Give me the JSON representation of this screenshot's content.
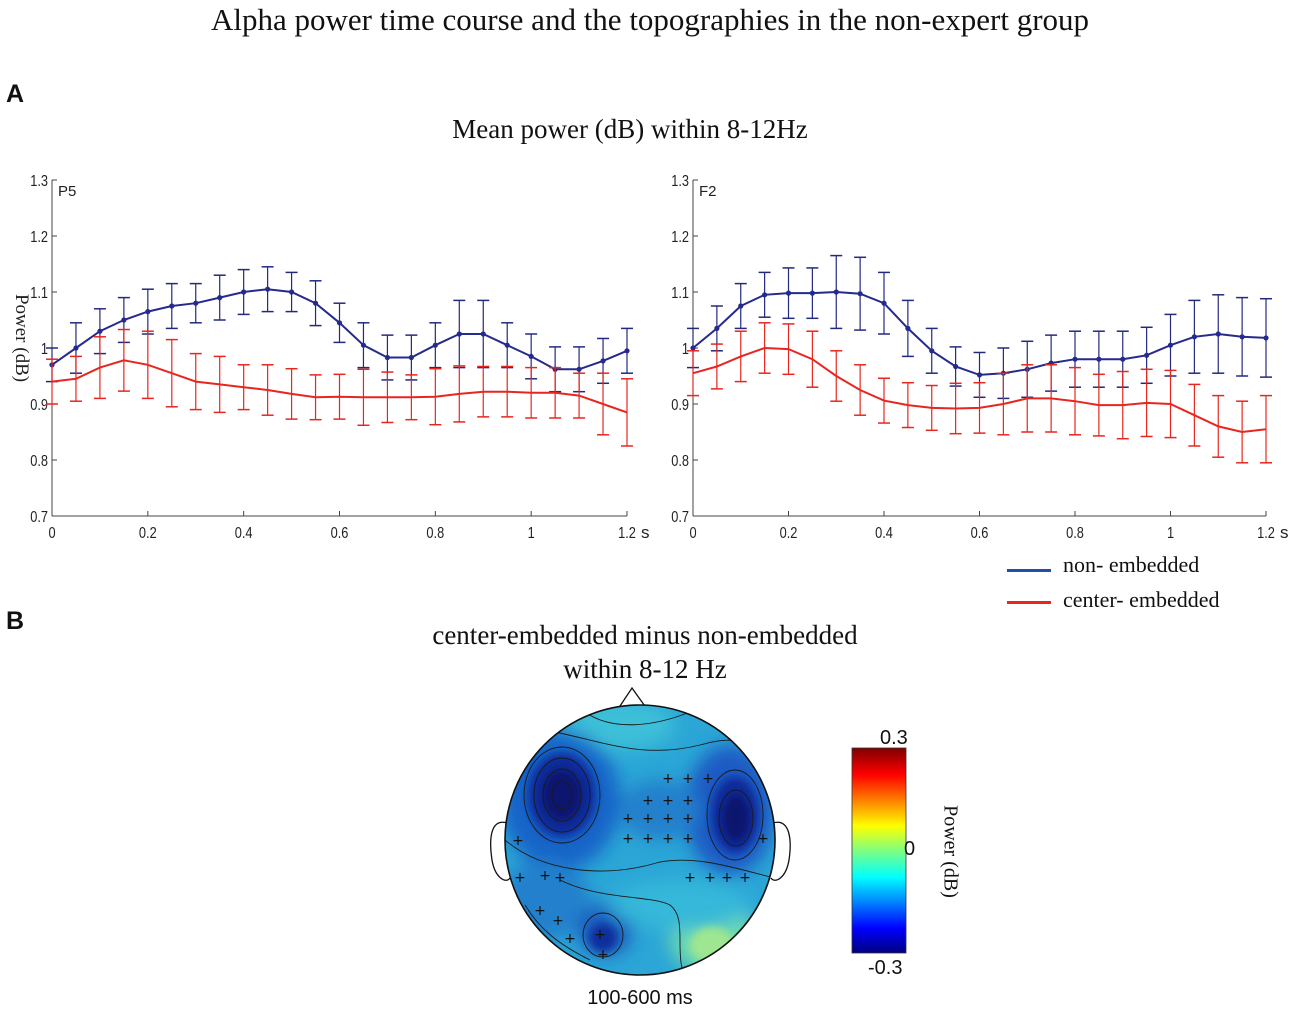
{
  "title": "Alpha power time course and the topographies in the non-expert group",
  "panel_a": {
    "letter": "A",
    "title": "Mean  power (dB) within 8-12Hz"
  },
  "panel_b": {
    "letter": "B",
    "title_line1": "center-embedded  minus  non-embedded",
    "title_line2": "within  8-12 Hz",
    "time_window": "100-600 ms",
    "colorbar": {
      "max_label": "0.3",
      "mid_label": "0",
      "min_label": "-0.3",
      "label": "Power (dB)"
    }
  },
  "legend": [
    {
      "name": "non- embedded",
      "color": "#1f4fa8"
    },
    {
      "name": "center- embedded",
      "color": "#e8261f"
    }
  ],
  "colors": {
    "blue_line": "#252a8c",
    "blue_err": "#232a7e",
    "red_line": "#e8261f"
  },
  "chart_data": [
    {
      "type": "line",
      "electrode": "P5",
      "ylabel": "Power (dB)",
      "x_unit": "s",
      "xlim": [
        0,
        1.2
      ],
      "ylim": [
        0.7,
        1.3
      ],
      "x_ticks": [
        "0",
        "0.2",
        "0.4",
        "0.6",
        "0.8",
        "1",
        "1.2"
      ],
      "y_ticks": [
        "0.7",
        "0.8",
        "0.9",
        "1",
        "1.1",
        "1.2",
        "1.3"
      ],
      "x": [
        0,
        0.05,
        0.1,
        0.15,
        0.2,
        0.25,
        0.3,
        0.35,
        0.4,
        0.45,
        0.5,
        0.55,
        0.6,
        0.65,
        0.7,
        0.75,
        0.8,
        0.85,
        0.9,
        0.95,
        1.0,
        1.05,
        1.1,
        1.15,
        1.2
      ],
      "series": [
        {
          "name": "non- embedded",
          "values": [
            0.97,
            1.0,
            1.03,
            1.05,
            1.065,
            1.075,
            1.08,
            1.09,
            1.1,
            1.105,
            1.1,
            1.08,
            1.045,
            1.005,
            0.983,
            0.983,
            1.005,
            1.025,
            1.025,
            1.005,
            0.985,
            0.962,
            0.962,
            0.977,
            0.995
          ],
          "errors": [
            0.03,
            0.045,
            0.04,
            0.04,
            0.04,
            0.04,
            0.035,
            0.04,
            0.04,
            0.04,
            0.035,
            0.04,
            0.035,
            0.04,
            0.04,
            0.04,
            0.04,
            0.06,
            0.06,
            0.04,
            0.04,
            0.04,
            0.04,
            0.04,
            0.04
          ]
        },
        {
          "name": "center- embedded",
          "values": [
            0.94,
            0.945,
            0.965,
            0.978,
            0.97,
            0.955,
            0.94,
            0.935,
            0.93,
            0.925,
            0.918,
            0.912,
            0.913,
            0.912,
            0.912,
            0.912,
            0.913,
            0.918,
            0.922,
            0.922,
            0.92,
            0.92,
            0.915,
            0.9,
            0.885
          ],
          "errors": [
            0.04,
            0.04,
            0.055,
            0.055,
            0.06,
            0.06,
            0.05,
            0.05,
            0.04,
            0.045,
            0.045,
            0.04,
            0.04,
            0.05,
            0.045,
            0.04,
            0.05,
            0.05,
            0.045,
            0.045,
            0.045,
            0.045,
            0.04,
            0.055,
            0.06
          ]
        }
      ]
    },
    {
      "type": "line",
      "electrode": "F2",
      "ylabel": "",
      "x_unit": "s",
      "xlim": [
        0,
        1.2
      ],
      "ylim": [
        0.7,
        1.3
      ],
      "x_ticks": [
        "0",
        "0.2",
        "0.4",
        "0.6",
        "0.8",
        "1",
        "1.2"
      ],
      "y_ticks": [
        "0.7",
        "0.8",
        "0.9",
        "1",
        "1.1",
        "1.2",
        "1.3"
      ],
      "x": [
        0,
        0.05,
        0.1,
        0.15,
        0.2,
        0.25,
        0.3,
        0.35,
        0.4,
        0.45,
        0.5,
        0.55,
        0.6,
        0.65,
        0.7,
        0.75,
        0.8,
        0.85,
        0.9,
        0.95,
        1.0,
        1.05,
        1.1,
        1.15,
        1.2
      ],
      "series": [
        {
          "name": "non- embedded",
          "values": [
            1.0,
            1.035,
            1.075,
            1.095,
            1.098,
            1.098,
            1.1,
            1.097,
            1.08,
            1.035,
            0.995,
            0.967,
            0.952,
            0.955,
            0.962,
            0.973,
            0.98,
            0.98,
            0.98,
            0.987,
            1.005,
            1.02,
            1.025,
            1.02,
            1.018
          ],
          "errors": [
            0.035,
            0.04,
            0.04,
            0.04,
            0.045,
            0.045,
            0.065,
            0.065,
            0.055,
            0.05,
            0.04,
            0.035,
            0.04,
            0.045,
            0.05,
            0.05,
            0.05,
            0.05,
            0.05,
            0.05,
            0.055,
            0.065,
            0.07,
            0.07,
            0.07
          ]
        },
        {
          "name": "center- embedded",
          "values": [
            0.955,
            0.967,
            0.985,
            1.0,
            0.998,
            0.98,
            0.95,
            0.925,
            0.906,
            0.898,
            0.893,
            0.892,
            0.893,
            0.9,
            0.91,
            0.91,
            0.905,
            0.898,
            0.898,
            0.902,
            0.9,
            0.88,
            0.86,
            0.85,
            0.855
          ],
          "errors": [
            0.04,
            0.04,
            0.045,
            0.045,
            0.045,
            0.05,
            0.045,
            0.045,
            0.04,
            0.04,
            0.04,
            0.045,
            0.045,
            0.055,
            0.06,
            0.06,
            0.06,
            0.055,
            0.06,
            0.06,
            0.06,
            0.055,
            0.055,
            0.055,
            0.06
          ]
        }
      ]
    }
  ]
}
